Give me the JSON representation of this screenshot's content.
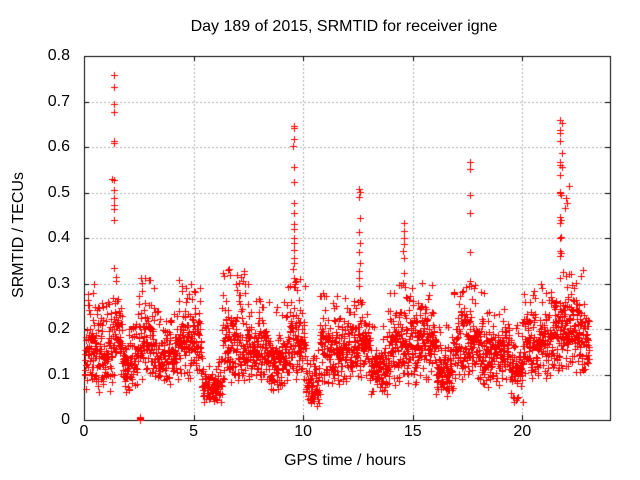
{
  "chart_data": {
    "type": "scatter",
    "title": "Day 189 of 2015, SRMTID for receiver igne",
    "xlabel": "GPS time / hours",
    "ylabel": "SRMTID / TECUs",
    "xlim": [
      0,
      24
    ],
    "ylim": [
      0,
      0.8
    ],
    "xticks": [
      0,
      5,
      10,
      15,
      20
    ],
    "xtick_labels": [
      "0",
      "5",
      "10",
      "15",
      "20"
    ],
    "yticks": [
      0,
      0.1,
      0.2,
      0.3,
      0.4,
      0.5,
      0.6,
      0.7,
      0.8
    ],
    "ytick_labels": [
      "0",
      "0.1",
      "0.2",
      "0.3",
      "0.4",
      "0.5",
      "0.6",
      "0.7",
      "0.8"
    ],
    "grid": {
      "visible": true,
      "style": "dotted",
      "color": "#b4b4b4"
    },
    "legend": "none",
    "marker": {
      "shape": "plus",
      "color": "#ff0000",
      "size": 7
    },
    "axis_color": "#000000",
    "background": "#ffffff",
    "seed": 20150189,
    "high_points": [
      [
        1.37,
        0.758
      ],
      [
        1.37,
        0.732
      ],
      [
        1.38,
        0.695
      ],
      [
        1.37,
        0.678
      ],
      [
        1.36,
        0.613
      ],
      [
        1.375,
        0.609
      ],
      [
        1.3,
        0.53
      ],
      [
        1.38,
        0.528
      ],
      [
        1.35,
        0.505
      ],
      [
        1.37,
        0.488
      ],
      [
        1.375,
        0.472
      ],
      [
        1.385,
        0.464
      ],
      [
        1.37,
        0.44
      ],
      [
        1.39,
        0.335
      ],
      [
        1.44,
        0.315
      ],
      [
        2.6,
        0.312
      ],
      [
        2.95,
        0.308
      ],
      [
        4.35,
        0.308
      ],
      [
        6.6,
        0.332
      ],
      [
        6.65,
        0.318
      ],
      [
        6.92,
        0.3
      ],
      [
        7.48,
        0.298
      ],
      [
        9.56,
        0.647
      ],
      [
        9.57,
        0.641
      ],
      [
        9.56,
        0.618
      ],
      [
        9.55,
        0.603
      ],
      [
        9.57,
        0.555
      ],
      [
        9.56,
        0.523
      ],
      [
        9.58,
        0.477
      ],
      [
        9.56,
        0.456
      ],
      [
        9.6,
        0.431
      ],
      [
        9.58,
        0.42
      ],
      [
        9.57,
        0.401
      ],
      [
        9.56,
        0.389
      ],
      [
        9.58,
        0.374
      ],
      [
        9.56,
        0.356
      ],
      [
        9.57,
        0.345
      ],
      [
        9.55,
        0.332
      ],
      [
        9.56,
        0.313
      ],
      [
        9.62,
        0.303
      ],
      [
        12.57,
        0.508
      ],
      [
        12.585,
        0.502
      ],
      [
        12.57,
        0.49
      ],
      [
        12.58,
        0.443
      ],
      [
        12.56,
        0.413
      ],
      [
        12.58,
        0.389
      ],
      [
        12.57,
        0.369
      ],
      [
        12.58,
        0.346
      ],
      [
        12.56,
        0.328
      ],
      [
        12.57,
        0.311
      ],
      [
        12.61,
        0.263
      ],
      [
        12.64,
        0.256
      ],
      [
        14.58,
        0.432
      ],
      [
        14.6,
        0.416
      ],
      [
        14.58,
        0.401
      ],
      [
        14.59,
        0.387
      ],
      [
        14.57,
        0.371
      ],
      [
        14.58,
        0.357
      ],
      [
        14.6,
        0.323
      ],
      [
        14.57,
        0.302
      ],
      [
        14.63,
        0.292
      ],
      [
        14.35,
        0.297
      ],
      [
        15.42,
        0.302
      ],
      [
        17.6,
        0.566
      ],
      [
        17.61,
        0.552
      ],
      [
        17.6,
        0.494
      ],
      [
        17.62,
        0.454
      ],
      [
        17.6,
        0.37
      ],
      [
        17.63,
        0.305
      ],
      [
        17.57,
        0.295
      ],
      [
        18.25,
        0.28
      ],
      [
        21.72,
        0.659
      ],
      [
        21.8,
        0.652
      ],
      [
        21.73,
        0.637
      ],
      [
        21.735,
        0.631
      ],
      [
        21.72,
        0.613
      ],
      [
        21.8,
        0.587
      ],
      [
        21.72,
        0.567
      ],
      [
        21.73,
        0.561
      ],
      [
        21.81,
        0.556
      ],
      [
        21.72,
        0.538
      ],
      [
        22.13,
        0.514
      ],
      [
        21.7,
        0.501
      ],
      [
        21.74,
        0.498
      ],
      [
        21.76,
        0.494
      ],
      [
        21.98,
        0.489
      ],
      [
        22.03,
        0.476
      ],
      [
        21.95,
        0.467
      ],
      [
        21.73,
        0.447
      ],
      [
        21.76,
        0.439
      ],
      [
        21.74,
        0.432
      ],
      [
        21.75,
        0.403
      ],
      [
        21.73,
        0.399
      ],
      [
        21.7,
        0.371
      ],
      [
        21.76,
        0.366
      ],
      [
        21.72,
        0.361
      ],
      [
        21.74,
        0.312
      ],
      [
        20.85,
        0.3
      ],
      [
        20.9,
        0.29
      ],
      [
        22.78,
        0.33
      ]
    ],
    "zero_cluster": [
      [
        2.555,
        0.0
      ],
      [
        2.56,
        0.004
      ],
      [
        2.565,
        0.002
      ],
      [
        2.555,
        0.006
      ],
      [
        2.565,
        0.007
      ]
    ],
    "baseline_segments": [
      {
        "x0": 0.02,
        "x1": 0.5,
        "lo": 0.06,
        "hi": 0.305,
        "rate": 130
      },
      {
        "x0": 0.5,
        "x1": 1.3,
        "lo": 0.06,
        "hi": 0.28,
        "rate": 122
      },
      {
        "x0": 1.3,
        "x1": 1.75,
        "lo": 0.1,
        "hi": 0.32,
        "rate": 128
      },
      {
        "x0": 1.75,
        "x1": 2.45,
        "lo": 0.06,
        "hi": 0.22,
        "rate": 120
      },
      {
        "x0": 2.45,
        "x1": 3.2,
        "lo": 0.08,
        "hi": 0.315,
        "rate": 124
      },
      {
        "x0": 3.2,
        "x1": 4.2,
        "lo": 0.08,
        "hi": 0.24,
        "rate": 120
      },
      {
        "x0": 4.2,
        "x1": 5.35,
        "lo": 0.09,
        "hi": 0.3,
        "rate": 124
      },
      {
        "x0": 5.35,
        "x1": 6.3,
        "lo": 0.035,
        "hi": 0.14,
        "rate": 118
      },
      {
        "x0": 6.3,
        "x1": 7.35,
        "lo": 0.07,
        "hi": 0.33,
        "rate": 124
      },
      {
        "x0": 7.35,
        "x1": 8.4,
        "lo": 0.09,
        "hi": 0.27,
        "rate": 124
      },
      {
        "x0": 8.4,
        "x1": 9.3,
        "lo": 0.05,
        "hi": 0.26,
        "rate": 124
      },
      {
        "x0": 9.3,
        "x1": 10.1,
        "lo": 0.09,
        "hi": 0.31,
        "rate": 128
      },
      {
        "x0": 10.1,
        "x1": 10.75,
        "lo": 0.03,
        "hi": 0.16,
        "rate": 114
      },
      {
        "x0": 10.75,
        "x1": 12.3,
        "lo": 0.08,
        "hi": 0.28,
        "rate": 124
      },
      {
        "x0": 12.3,
        "x1": 13.05,
        "lo": 0.09,
        "hi": 0.3,
        "rate": 124
      },
      {
        "x0": 13.05,
        "x1": 13.85,
        "lo": 0.05,
        "hi": 0.21,
        "rate": 118
      },
      {
        "x0": 13.85,
        "x1": 15.25,
        "lo": 0.07,
        "hi": 0.3,
        "rate": 124
      },
      {
        "x0": 15.25,
        "x1": 16.05,
        "lo": 0.09,
        "hi": 0.305,
        "rate": 124
      },
      {
        "x0": 16.05,
        "x1": 16.85,
        "lo": 0.05,
        "hi": 0.21,
        "rate": 118
      },
      {
        "x0": 16.85,
        "x1": 18.15,
        "lo": 0.09,
        "hi": 0.3,
        "rate": 124
      },
      {
        "x0": 18.15,
        "x1": 19.45,
        "lo": 0.07,
        "hi": 0.25,
        "rate": 120
      },
      {
        "x0": 19.45,
        "x1": 20.05,
        "lo": 0.04,
        "hi": 0.22,
        "rate": 114
      },
      {
        "x0": 20.05,
        "x1": 21.45,
        "lo": 0.09,
        "hi": 0.285,
        "rate": 124
      },
      {
        "x0": 21.45,
        "x1": 22.35,
        "lo": 0.11,
        "hi": 0.335,
        "rate": 134
      },
      {
        "x0": 22.35,
        "x1": 23.05,
        "lo": 0.09,
        "hi": 0.33,
        "rate": 130
      }
    ]
  }
}
